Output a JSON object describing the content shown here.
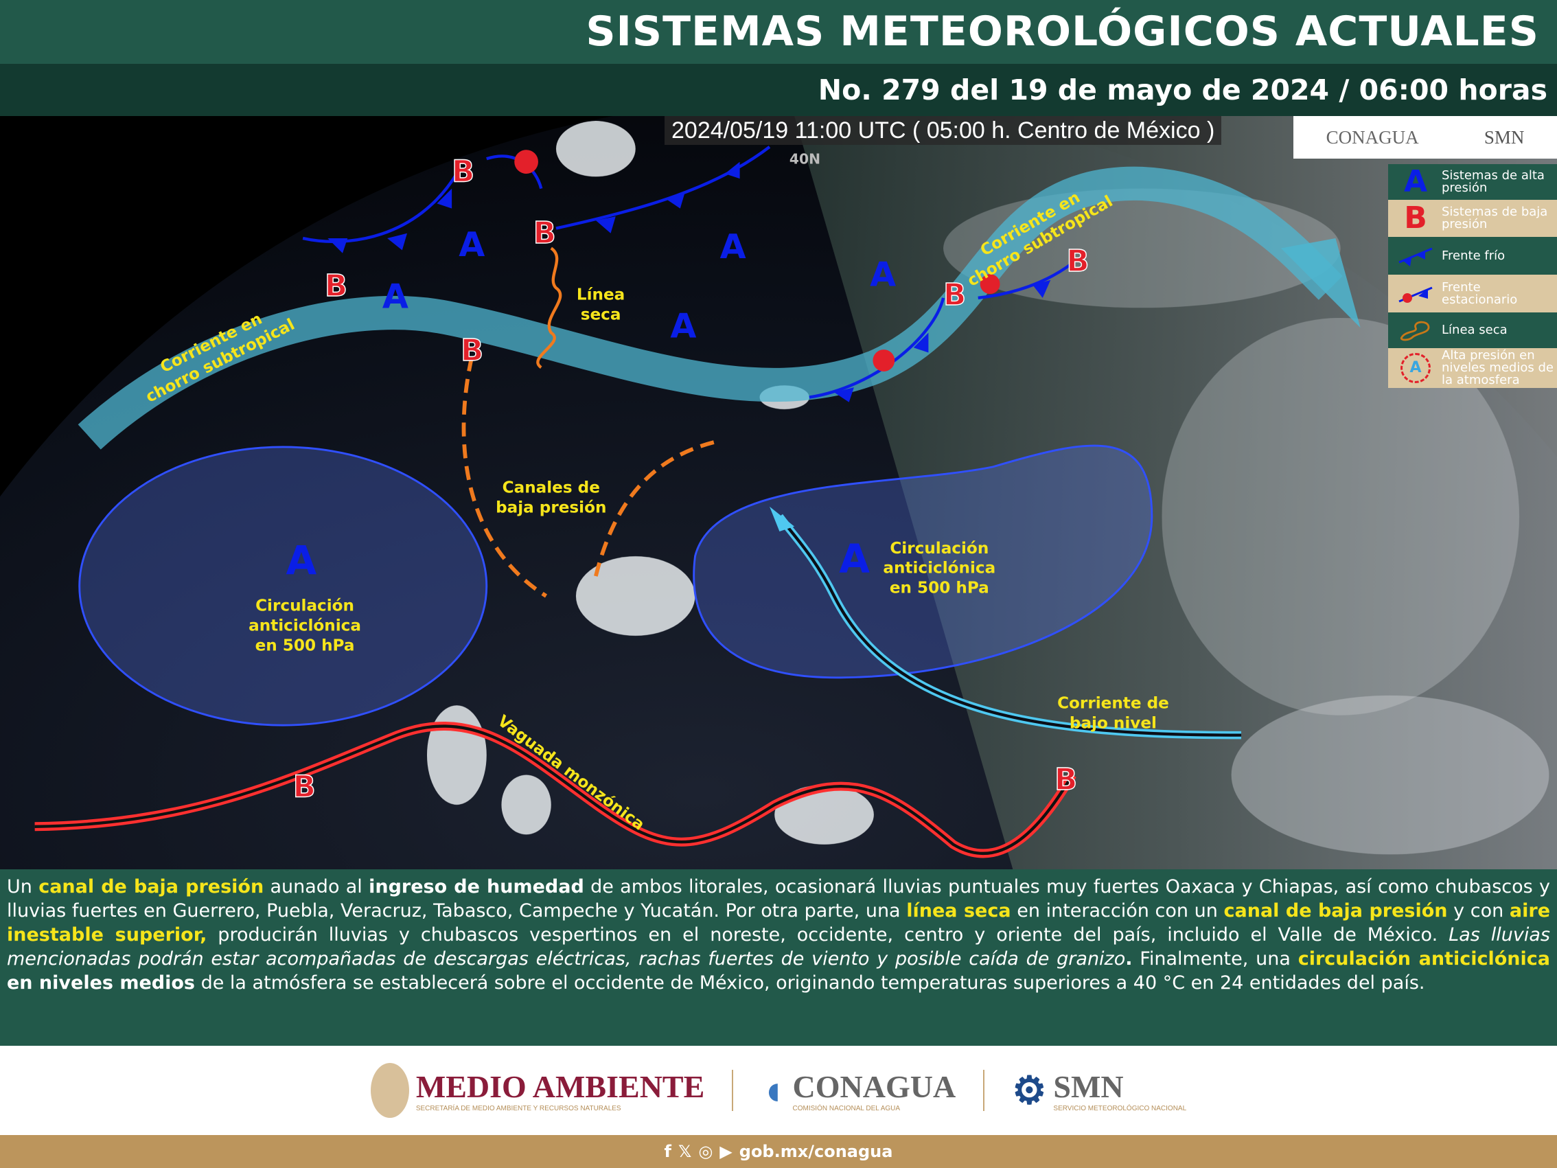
{
  "header": {
    "title": "SISTEMAS METEOROLÓGICOS ACTUALES",
    "subtitle": "No. 279 del 19 de mayo de 2024 / 06:00 horas"
  },
  "map": {
    "timestamp": "2024/05/19 11:00 UTC ( 05:00 h. Centro de México )",
    "lat_label": "40N",
    "labels": {
      "jet1a": "Corriente en",
      "jet1b": "chorro subtropical",
      "jet2a": "Corriente en",
      "jet2b": "chorro subtropical",
      "dry1": "Línea",
      "dry2": "seca",
      "trough1": "Canales de",
      "trough2": "baja presión",
      "anti1a": "Circulación",
      "anti1b": "anticiclónica",
      "anti1c": "en 500 hPa",
      "anti2a": "Circulación",
      "anti2b": "anticiclónica",
      "anti2c": "en 500 hPa",
      "low1": "Corriente de",
      "low2": "bajo nivel",
      "monsoon": "Vaguada monzónica"
    },
    "high_symbol": "A",
    "low_symbol": "B"
  },
  "logos": {
    "conagua": "CONAGUA",
    "conagua_sub": "COMISIÓN NACIONAL DEL AGUA",
    "smn": "SMN",
    "smn_sub": "SERVICIO METEOROLÓGICO NACIONAL",
    "medio": "MEDIO AMBIENTE",
    "medio_sub": "SECRETARÍA DE MEDIO AMBIENTE Y RECURSOS NATURALES"
  },
  "legend": [
    {
      "icon": "A",
      "label": "Sistemas de alta presión"
    },
    {
      "icon": "B",
      "label": "Sistemas de baja presión"
    },
    {
      "icon": "cold-front",
      "label": "Frente frío"
    },
    {
      "icon": "stationary-front",
      "label": "Frente estacionario"
    },
    {
      "icon": "dry-line",
      "label": "Línea seca"
    },
    {
      "icon": "A",
      "label": "Alta presión en niveles medios de la atmosfera"
    }
  ],
  "colors": {
    "high": "#0a1ee6",
    "low": "#e3202a",
    "dry_line": "#f07a1e",
    "jet": "#4fb6d0",
    "highlight": "#f6e51b",
    "green": "#22594a",
    "gold": "#bc955c"
  },
  "description": {
    "p1": "Un ",
    "h1": "canal de baja presión",
    "p2": " aunado al ",
    "b1": "ingreso de humedad",
    "p3": " de ambos litorales, ocasionará lluvias puntuales muy fuertes Oaxaca y Chiapas, así como chubascos y lluvias fuertes en Guerrero, Puebla, Veracruz, Tabasco, Campeche y Yucatán. Por otra parte, una ",
    "h2": "línea seca",
    "p4": " en interacción con un ",
    "h3": "canal de baja presión",
    "p5": " y con ",
    "h4": "aire inestable superior,",
    "p6": " producirán lluvias y chubascos vespertinos en el noreste, occidente, centro y oriente del país, incluido el Valle de México. ",
    "i1": "Las lluvias mencionadas podrán estar acompañadas de descargas eléctricas, rachas fuertes de viento y posible caída de granizo",
    "b2": ".",
    "p7": " Finalmente, una ",
    "h5": "circulación anticiclónica",
    "b3": " en niveles medios",
    "p8": " de la atmósfera se establecerá sobre el occidente de México, originando temperaturas superiores a 40 °C en 24 entidades del país."
  },
  "footer": {
    "url": "gob.mx/conagua",
    "social": [
      "facebook",
      "x",
      "instagram",
      "youtube"
    ]
  }
}
